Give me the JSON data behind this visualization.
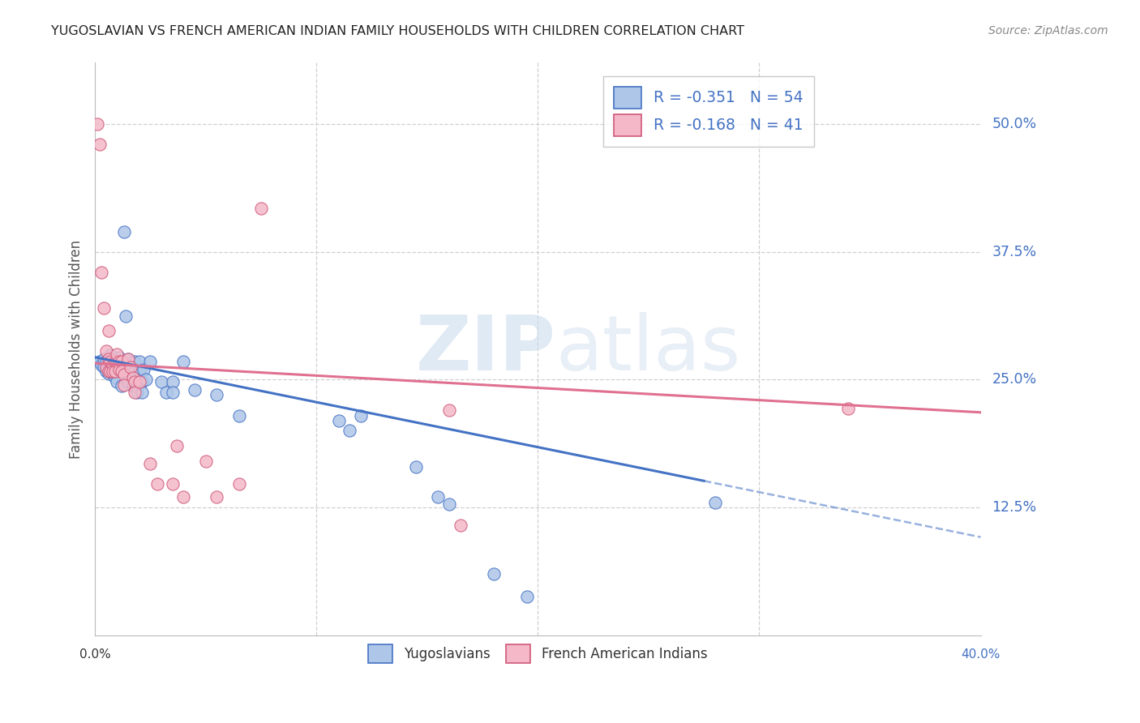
{
  "title": "YUGOSLAVIAN VS FRENCH AMERICAN INDIAN FAMILY HOUSEHOLDS WITH CHILDREN CORRELATION CHART",
  "source": "Source: ZipAtlas.com",
  "ylabel": "Family Households with Children",
  "ytick_labels": [
    "50.0%",
    "37.5%",
    "25.0%",
    "12.5%"
  ],
  "ytick_values": [
    0.5,
    0.375,
    0.25,
    0.125
  ],
  "xmin": 0.0,
  "xmax": 0.4,
  "ymin": 0.0,
  "ymax": 0.56,
  "yugoslavian_color": "#aec6e8",
  "french_color": "#f4b8c8",
  "trend_blue": "#4472c4",
  "trend_pink": "#e07090",
  "legend_R_blue": "-0.351",
  "legend_N_blue": "54",
  "legend_R_pink": "-0.168",
  "legend_N_pink": "41",
  "watermark_zip": "ZIP",
  "watermark_atlas": "atlas",
  "background_color": "#ffffff",
  "grid_color": "#d0d0d0",
  "title_color": "#222222",
  "axis_label_color": "#4472c4",
  "blue_scatter": [
    [
      0.002,
      0.268
    ],
    [
      0.003,
      0.265
    ],
    [
      0.004,
      0.27
    ],
    [
      0.004,
      0.262
    ],
    [
      0.005,
      0.268
    ],
    [
      0.005,
      0.258
    ],
    [
      0.006,
      0.264
    ],
    [
      0.006,
      0.256
    ],
    [
      0.007,
      0.262
    ],
    [
      0.007,
      0.274
    ],
    [
      0.008,
      0.268
    ],
    [
      0.008,
      0.256
    ],
    [
      0.009,
      0.264
    ],
    [
      0.009,
      0.252
    ],
    [
      0.01,
      0.268
    ],
    [
      0.01,
      0.248
    ],
    [
      0.011,
      0.272
    ],
    [
      0.011,
      0.26
    ],
    [
      0.012,
      0.258
    ],
    [
      0.012,
      0.244
    ],
    [
      0.013,
      0.395
    ],
    [
      0.014,
      0.312
    ],
    [
      0.015,
      0.27
    ],
    [
      0.015,
      0.248
    ],
    [
      0.016,
      0.26
    ],
    [
      0.017,
      0.244
    ],
    [
      0.018,
      0.268
    ],
    [
      0.018,
      0.258
    ],
    [
      0.019,
      0.248
    ],
    [
      0.019,
      0.238
    ],
    [
      0.02,
      0.268
    ],
    [
      0.02,
      0.258
    ],
    [
      0.021,
      0.248
    ],
    [
      0.021,
      0.238
    ],
    [
      0.022,
      0.26
    ],
    [
      0.023,
      0.25
    ],
    [
      0.025,
      0.268
    ],
    [
      0.03,
      0.248
    ],
    [
      0.032,
      0.238
    ],
    [
      0.035,
      0.248
    ],
    [
      0.035,
      0.238
    ],
    [
      0.04,
      0.268
    ],
    [
      0.045,
      0.24
    ],
    [
      0.055,
      0.235
    ],
    [
      0.065,
      0.215
    ],
    [
      0.11,
      0.21
    ],
    [
      0.115,
      0.2
    ],
    [
      0.12,
      0.215
    ],
    [
      0.145,
      0.165
    ],
    [
      0.155,
      0.135
    ],
    [
      0.16,
      0.128
    ],
    [
      0.18,
      0.06
    ],
    [
      0.195,
      0.038
    ],
    [
      0.28,
      0.13
    ]
  ],
  "pink_scatter": [
    [
      0.001,
      0.5
    ],
    [
      0.002,
      0.48
    ],
    [
      0.003,
      0.355
    ],
    [
      0.004,
      0.32
    ],
    [
      0.005,
      0.278
    ],
    [
      0.005,
      0.262
    ],
    [
      0.006,
      0.27
    ],
    [
      0.006,
      0.258
    ],
    [
      0.006,
      0.298
    ],
    [
      0.007,
      0.268
    ],
    [
      0.007,
      0.258
    ],
    [
      0.008,
      0.265
    ],
    [
      0.008,
      0.258
    ],
    [
      0.009,
      0.268
    ],
    [
      0.009,
      0.258
    ],
    [
      0.01,
      0.268
    ],
    [
      0.01,
      0.275
    ],
    [
      0.011,
      0.268
    ],
    [
      0.011,
      0.26
    ],
    [
      0.012,
      0.268
    ],
    [
      0.012,
      0.258
    ],
    [
      0.013,
      0.255
    ],
    [
      0.013,
      0.245
    ],
    [
      0.015,
      0.27
    ],
    [
      0.016,
      0.262
    ],
    [
      0.017,
      0.252
    ],
    [
      0.018,
      0.248
    ],
    [
      0.018,
      0.238
    ],
    [
      0.02,
      0.248
    ],
    [
      0.025,
      0.168
    ],
    [
      0.028,
      0.148
    ],
    [
      0.035,
      0.148
    ],
    [
      0.037,
      0.185
    ],
    [
      0.04,
      0.135
    ],
    [
      0.05,
      0.17
    ],
    [
      0.055,
      0.135
    ],
    [
      0.065,
      0.148
    ],
    [
      0.075,
      0.418
    ],
    [
      0.16,
      0.22
    ],
    [
      0.165,
      0.108
    ],
    [
      0.34,
      0.222
    ]
  ]
}
